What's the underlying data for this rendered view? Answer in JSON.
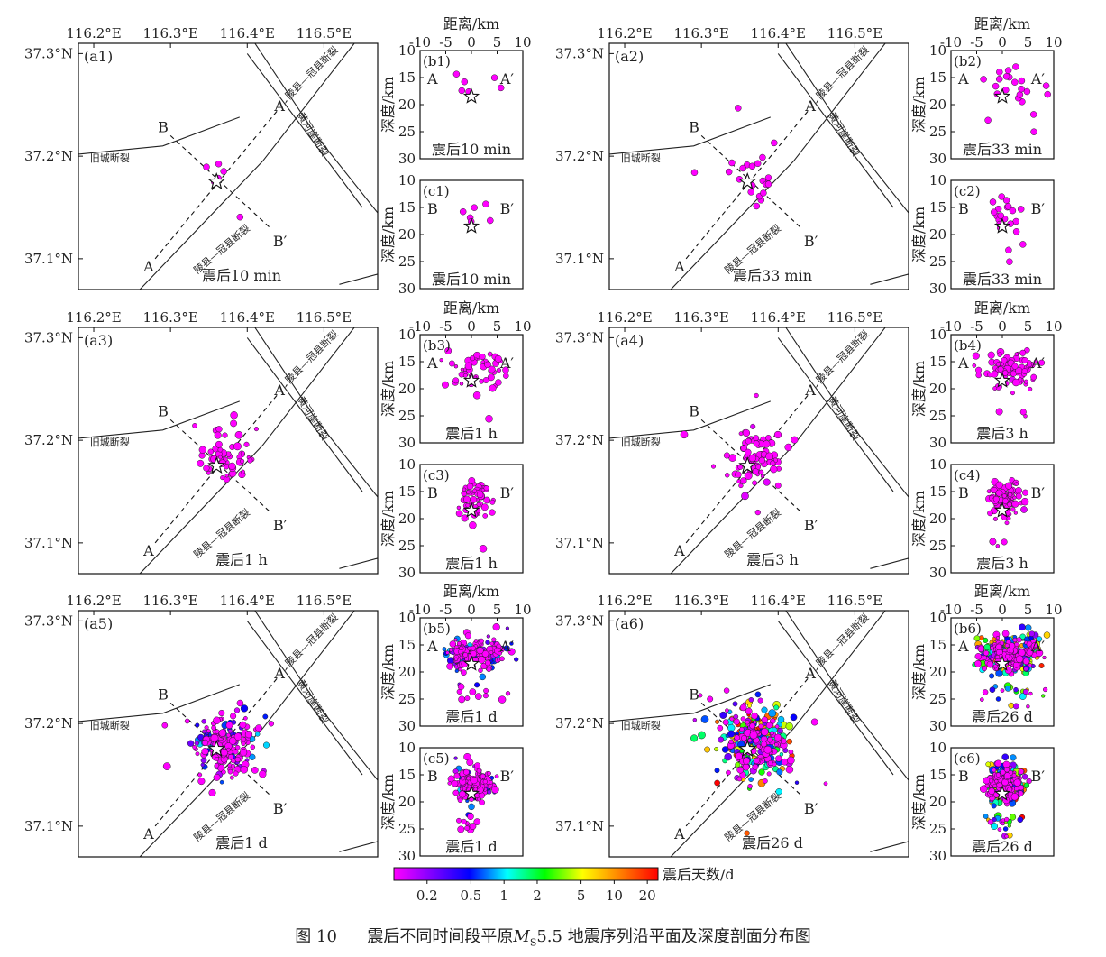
{
  "chart_data": {
    "type": "scatter",
    "title": "震后不同时间段平原MS5.5地震序列沿平面及深度剖面分布图",
    "map": {
      "lon_range": [
        116.18,
        116.57
      ],
      "lat_range": [
        37.07,
        37.31
      ],
      "lon_ticks": [
        116.2,
        116.3,
        116.4,
        116.5
      ],
      "lon_tick_labels": [
        "116.2°E",
        "116.3°E",
        "116.4°E",
        "116.5°E"
      ],
      "lat_ticks": [
        37.1,
        37.2,
        37.3
      ],
      "lat_tick_labels": [
        "37.1°N",
        "37.2°N",
        "37.3°N"
      ],
      "mainshock": {
        "lon": 116.36,
        "lat": 37.175
      },
      "profile_AA": {
        "start_label": "A",
        "end_label": "A′",
        "start": [
          116.28,
          37.1
        ],
        "end": [
          116.44,
          37.245
        ]
      },
      "profile_BB": {
        "start_label": "B",
        "end_label": "B′",
        "start": [
          116.3,
          37.22
        ],
        "end": [
          116.43,
          37.13
        ]
      },
      "faults": [
        {
          "name": "旧城断裂",
          "points": [
            [
              116.18,
              37.202
            ],
            [
              116.29,
              37.21
            ],
            [
              116.39,
              37.238
            ]
          ]
        },
        {
          "name": "陵县—冠县断裂",
          "points": [
            [
              116.26,
              37.07
            ],
            [
              116.42,
              37.195
            ],
            [
              116.55,
              37.32
            ]
          ]
        },
        {
          "name": "黄河崖断裂",
          "points": [
            [
              116.4,
              37.3
            ],
            [
              116.55,
              37.15
            ]
          ]
        },
        {
          "name": "陵县—冠县断裂",
          "points": [
            [
              116.41,
              37.31
            ],
            [
              116.49,
              37.22
            ],
            [
              116.575,
              37.14
            ]
          ]
        },
        {
          "name": "",
          "points": [
            [
              116.52,
              37.075
            ],
            [
              116.57,
              37.085
            ]
          ]
        }
      ]
    },
    "profiles": {
      "depth_range": [
        10,
        30
      ],
      "depth_ticks": [
        10,
        15,
        20,
        25,
        30
      ],
      "distance_range": [
        -10,
        10
      ],
      "distance_ticks": [
        -10,
        -5,
        0,
        5,
        10
      ],
      "xlabel": "距离/km",
      "ylabel": "深度/km",
      "mainshock_depth": 18.5
    },
    "colorbar": {
      "label": "震后天数/d",
      "scale": "log",
      "range": [
        0.1,
        25
      ],
      "ticks": [
        0.2,
        0.5,
        1,
        2,
        5,
        10,
        20
      ],
      "tick_labels": [
        "0.2",
        "0.5",
        "1",
        "2",
        "5",
        "10",
        "20"
      ],
      "colormap": [
        "#ff00ff",
        "#7f00ff",
        "#0000ff",
        "#00ffff",
        "#00ff00",
        "#ffff00",
        "#ff8000",
        "#ff0000"
      ]
    },
    "panels": [
      {
        "id": "1",
        "map_tag": "(a1)",
        "aa_tag": "(b1)",
        "bb_tag": "(c1)",
        "time_label": "震后10 min",
        "count": 6,
        "max_days": 0.007,
        "seed": 11
      },
      {
        "id": "2",
        "map_tag": "(a2)",
        "aa_tag": "(b2)",
        "bb_tag": "(c2)",
        "time_label": "震后33 min",
        "count": 22,
        "max_days": 0.023,
        "seed": 23
      },
      {
        "id": "3",
        "map_tag": "(a3)",
        "aa_tag": "(b3)",
        "bb_tag": "(c3)",
        "time_label": "震后1 h",
        "count": 55,
        "max_days": 0.042,
        "seed": 37
      },
      {
        "id": "4",
        "map_tag": "(a4)",
        "aa_tag": "(b4)",
        "bb_tag": "(c4)",
        "time_label": "震后3 h",
        "count": 85,
        "max_days": 0.125,
        "seed": 41
      },
      {
        "id": "5",
        "map_tag": "(a5)",
        "aa_tag": "(b5)",
        "bb_tag": "(c5)",
        "time_label": "震后1 d",
        "count": 190,
        "max_days": 1.0,
        "seed": 53
      },
      {
        "id": "6",
        "map_tag": "(a6)",
        "aa_tag": "(b6)",
        "bb_tag": "(c6)",
        "time_label": "震后26 d",
        "count": 330,
        "max_days": 26.0,
        "seed": 67
      }
    ]
  },
  "caption": {
    "prefix": "图 10",
    "text_before": "震后不同时间段平原",
    "ms_main": "M",
    "ms_sub": "S",
    "text_after": "5.5 地震序列沿平面及深度剖面分布图"
  }
}
